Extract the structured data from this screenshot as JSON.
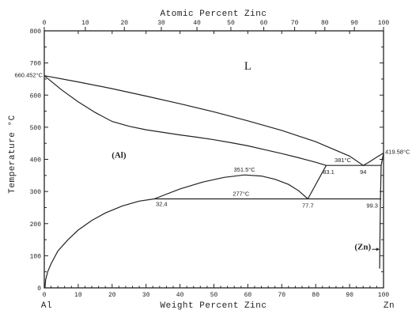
{
  "chart_data": {
    "type": "line",
    "title": "",
    "top_axis": {
      "label": "Atomic Percent Zinc",
      "ticks": [
        "0",
        "10",
        "20",
        "30",
        "40",
        "50",
        "60",
        "70",
        "80",
        "90",
        "100"
      ],
      "tick_positions_wt": [
        0,
        12.1,
        23.6,
        34.5,
        45.0,
        55.0,
        64.7,
        73.8,
        82.7,
        91.4,
        100
      ]
    },
    "xlabel": "Weight Percent Zinc",
    "ylabel": "Temperature °C",
    "xlim": [
      0,
      100
    ],
    "ylim": [
      0,
      800
    ],
    "x_ticks": [
      "0",
      "10",
      "20",
      "30",
      "40",
      "50",
      "60",
      "70",
      "80",
      "90",
      "100"
    ],
    "y_ticks": [
      "0",
      "100",
      "200",
      "300",
      "400",
      "500",
      "600",
      "700",
      "800"
    ],
    "end_labels": {
      "left": "Al",
      "right": "Zn"
    },
    "regions": [
      {
        "label": "L",
        "x": 60,
        "y": 680
      },
      {
        "label": "(Al)",
        "x": 22,
        "y": 405
      },
      {
        "label": "(Zn)",
        "x": 93,
        "y": 120
      }
    ],
    "annotations": [
      {
        "text": "660.452°C",
        "x": 0,
        "y": 660.452
      },
      {
        "text": "381°C",
        "x": 88,
        "y": 381
      },
      {
        "text": "419.58°C",
        "x": 100,
        "y": 419.58
      },
      {
        "text": "351.5°C",
        "x": 59,
        "y": 351.5
      },
      {
        "text": "277°C",
        "x": 58,
        "y": 277
      },
      {
        "text": "83.1",
        "x": 83.1,
        "y": 381
      },
      {
        "text": "94",
        "x": 94,
        "y": 381
      },
      {
        "text": "32.4",
        "x": 32.4,
        "y": 277
      },
      {
        "text": "77.7",
        "x": 77.7,
        "y": 277
      },
      {
        "text": "99.3",
        "x": 99.3,
        "y": 277
      }
    ],
    "series": [
      {
        "id": "liquidus",
        "x": [
          0,
          10,
          20,
          30,
          40,
          50,
          60,
          70,
          80,
          90,
          94,
          95.5,
          97,
          98.5,
          100
        ],
        "y": [
          660.452,
          641,
          620,
          597,
          573,
          548,
          520,
          490,
          455,
          410,
          381,
          390,
          400,
          410,
          419.58
        ]
      },
      {
        "id": "solidus",
        "x": [
          0,
          5,
          10,
          15,
          20,
          25,
          30,
          35,
          40,
          45,
          50,
          55,
          60,
          65,
          70,
          75,
          80,
          83.1
        ],
        "y": [
          660.452,
          617,
          579,
          546,
          518,
          503,
          492,
          484,
          476,
          469,
          461,
          452,
          442,
          430,
          418,
          405,
          391,
          381
        ]
      },
      {
        "id": "solvus",
        "x": [
          0.2,
          0.4,
          1,
          2,
          4,
          7,
          10,
          14,
          18,
          23,
          28,
          32.4
        ],
        "y": [
          0,
          25,
          50,
          75,
          115,
          150,
          180,
          210,
          233,
          255,
          270,
          277
        ]
      },
      {
        "id": "miscibility-gap",
        "x": [
          32.4,
          40,
          47,
          53,
          59,
          64,
          68,
          72,
          75,
          77.7
        ],
        "y": [
          277,
          308,
          330,
          344,
          351.5,
          348,
          338,
          322,
          302,
          277
        ]
      },
      {
        "id": "alpha-prime-boundary",
        "x": [
          77.7,
          83.1
        ],
        "y": [
          277,
          381
        ]
      },
      {
        "id": "monotectoid-line",
        "x": [
          32.4,
          99.3
        ],
        "y": [
          277,
          277
        ]
      },
      {
        "id": "eutectic-line",
        "x": [
          83.1,
          99.3
        ],
        "y": [
          381,
          381
        ]
      },
      {
        "id": "zn-solidus",
        "x": [
          100,
          99.3,
          99.1,
          99.0,
          98.9,
          98.85
        ],
        "y": [
          419.58,
          381,
          277,
          200,
          120,
          60
        ]
      }
    ]
  }
}
